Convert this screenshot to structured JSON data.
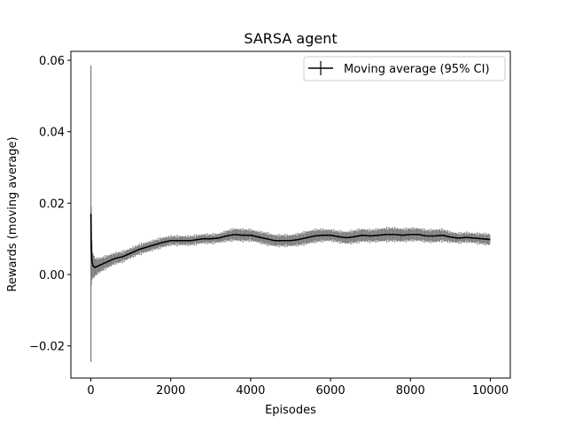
{
  "chart_data": {
    "type": "line",
    "title": "SARSA agent",
    "xlabel": "Episodes",
    "ylabel": "Rewards (moving average)",
    "xlim": [
      -500,
      10500
    ],
    "ylim": [
      -0.029,
      0.0625
    ],
    "x_ticks": [
      0,
      2000,
      4000,
      6000,
      8000,
      10000
    ],
    "x_tick_labels": [
      "0",
      "2000",
      "4000",
      "6000",
      "8000",
      "10000"
    ],
    "y_ticks": [
      -0.02,
      0.0,
      0.02,
      0.04,
      0.06
    ],
    "y_tick_labels": [
      "−0.02",
      "0.00",
      "0.02",
      "0.04",
      "0.06"
    ],
    "grid": false,
    "legend": {
      "placement": "upper right",
      "entries": [
        "Moving average (95% CI)"
      ]
    },
    "series": [
      {
        "name": "Moving average (95% CI)",
        "color": "#000000",
        "errorbar_color": "#808080",
        "x": [
          1,
          10,
          25,
          50,
          100,
          200,
          300,
          400,
          500,
          600,
          800,
          1000,
          1200,
          1500,
          1800,
          2000,
          2200,
          2500,
          2800,
          3000,
          3200,
          3400,
          3600,
          3800,
          4000,
          4200,
          4400,
          4600,
          4800,
          5000,
          5200,
          5400,
          5600,
          5800,
          6000,
          6200,
          6400,
          6600,
          6800,
          7000,
          7200,
          7400,
          7600,
          7800,
          8000,
          8200,
          8400,
          8600,
          8800,
          9000,
          9200,
          9400,
          9600,
          9800,
          10000
        ],
        "y": [
          0.017,
          0.008,
          0.004,
          0.0025,
          0.002,
          0.0025,
          0.003,
          0.0035,
          0.004,
          0.0045,
          0.005,
          0.006,
          0.007,
          0.008,
          0.009,
          0.0095,
          0.0095,
          0.0095,
          0.01,
          0.01,
          0.0102,
          0.0108,
          0.0112,
          0.011,
          0.011,
          0.0105,
          0.01,
          0.0095,
          0.0095,
          0.0095,
          0.0098,
          0.0103,
          0.0108,
          0.011,
          0.011,
          0.0106,
          0.0103,
          0.0106,
          0.011,
          0.0108,
          0.011,
          0.0112,
          0.0112,
          0.011,
          0.0112,
          0.0112,
          0.0108,
          0.0108,
          0.011,
          0.0105,
          0.0102,
          0.0104,
          0.0102,
          0.01,
          0.0098
        ],
        "ci_halfwidth": [
          0.0415,
          0.011,
          0.0055,
          0.0035,
          0.0025,
          0.002,
          0.0018,
          0.0017,
          0.0016,
          0.0015,
          0.0014,
          0.0013,
          0.0013,
          0.0013,
          0.0013,
          0.0012,
          0.0012,
          0.0012,
          0.0012,
          0.0012,
          0.0012,
          0.0014,
          0.0016,
          0.0016,
          0.0015,
          0.0015,
          0.0016,
          0.0015,
          0.0015,
          0.0015,
          0.0016,
          0.0017,
          0.0017,
          0.0016,
          0.0015,
          0.0015,
          0.0016,
          0.0017,
          0.0017,
          0.0016,
          0.0017,
          0.0018,
          0.0018,
          0.0017,
          0.0017,
          0.0017,
          0.0016,
          0.0017,
          0.0016,
          0.0014,
          0.0013,
          0.0013,
          0.0013,
          0.0014,
          0.0015
        ]
      }
    ]
  }
}
